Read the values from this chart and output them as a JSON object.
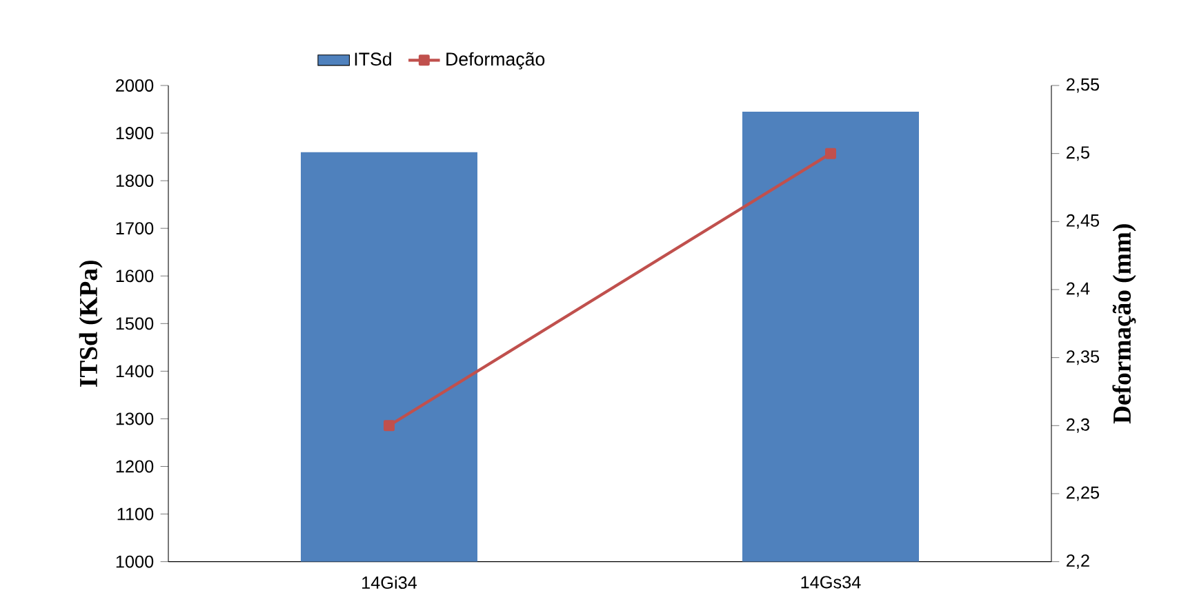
{
  "chart_data": {
    "type": "bar",
    "categories": [
      "14Gi34",
      "14Gs34"
    ],
    "ylabel": "ITSd (KPa)",
    "y2label": "Deformação (mm)",
    "ylim": [
      1000,
      2000
    ],
    "yticks": [
      1000,
      1100,
      1200,
      1300,
      1400,
      1500,
      1600,
      1700,
      1800,
      1900,
      2000
    ],
    "y2lim": [
      2.2,
      2.55
    ],
    "y2ticks": [
      {
        "value": 2.2,
        "label": "2,2"
      },
      {
        "value": 2.25,
        "label": "2,25"
      },
      {
        "value": 2.3,
        "label": "2,3"
      },
      {
        "value": 2.35,
        "label": "2,35"
      },
      {
        "value": 2.4,
        "label": "2,4"
      },
      {
        "value": 2.45,
        "label": "2,45"
      },
      {
        "value": 2.5,
        "label": "2,5"
      },
      {
        "value": 2.55,
        "label": "2,55"
      }
    ],
    "series": [
      {
        "name": "ITSd",
        "color": "#4f81bd",
        "values": [
          1860,
          1945
        ]
      },
      {
        "name": "Deformação",
        "type": "line",
        "axis": "y2",
        "color": "#c0504d",
        "values": [
          2.3,
          2.5
        ]
      }
    ],
    "marker": "square",
    "legend": "top",
    "grid": false
  }
}
